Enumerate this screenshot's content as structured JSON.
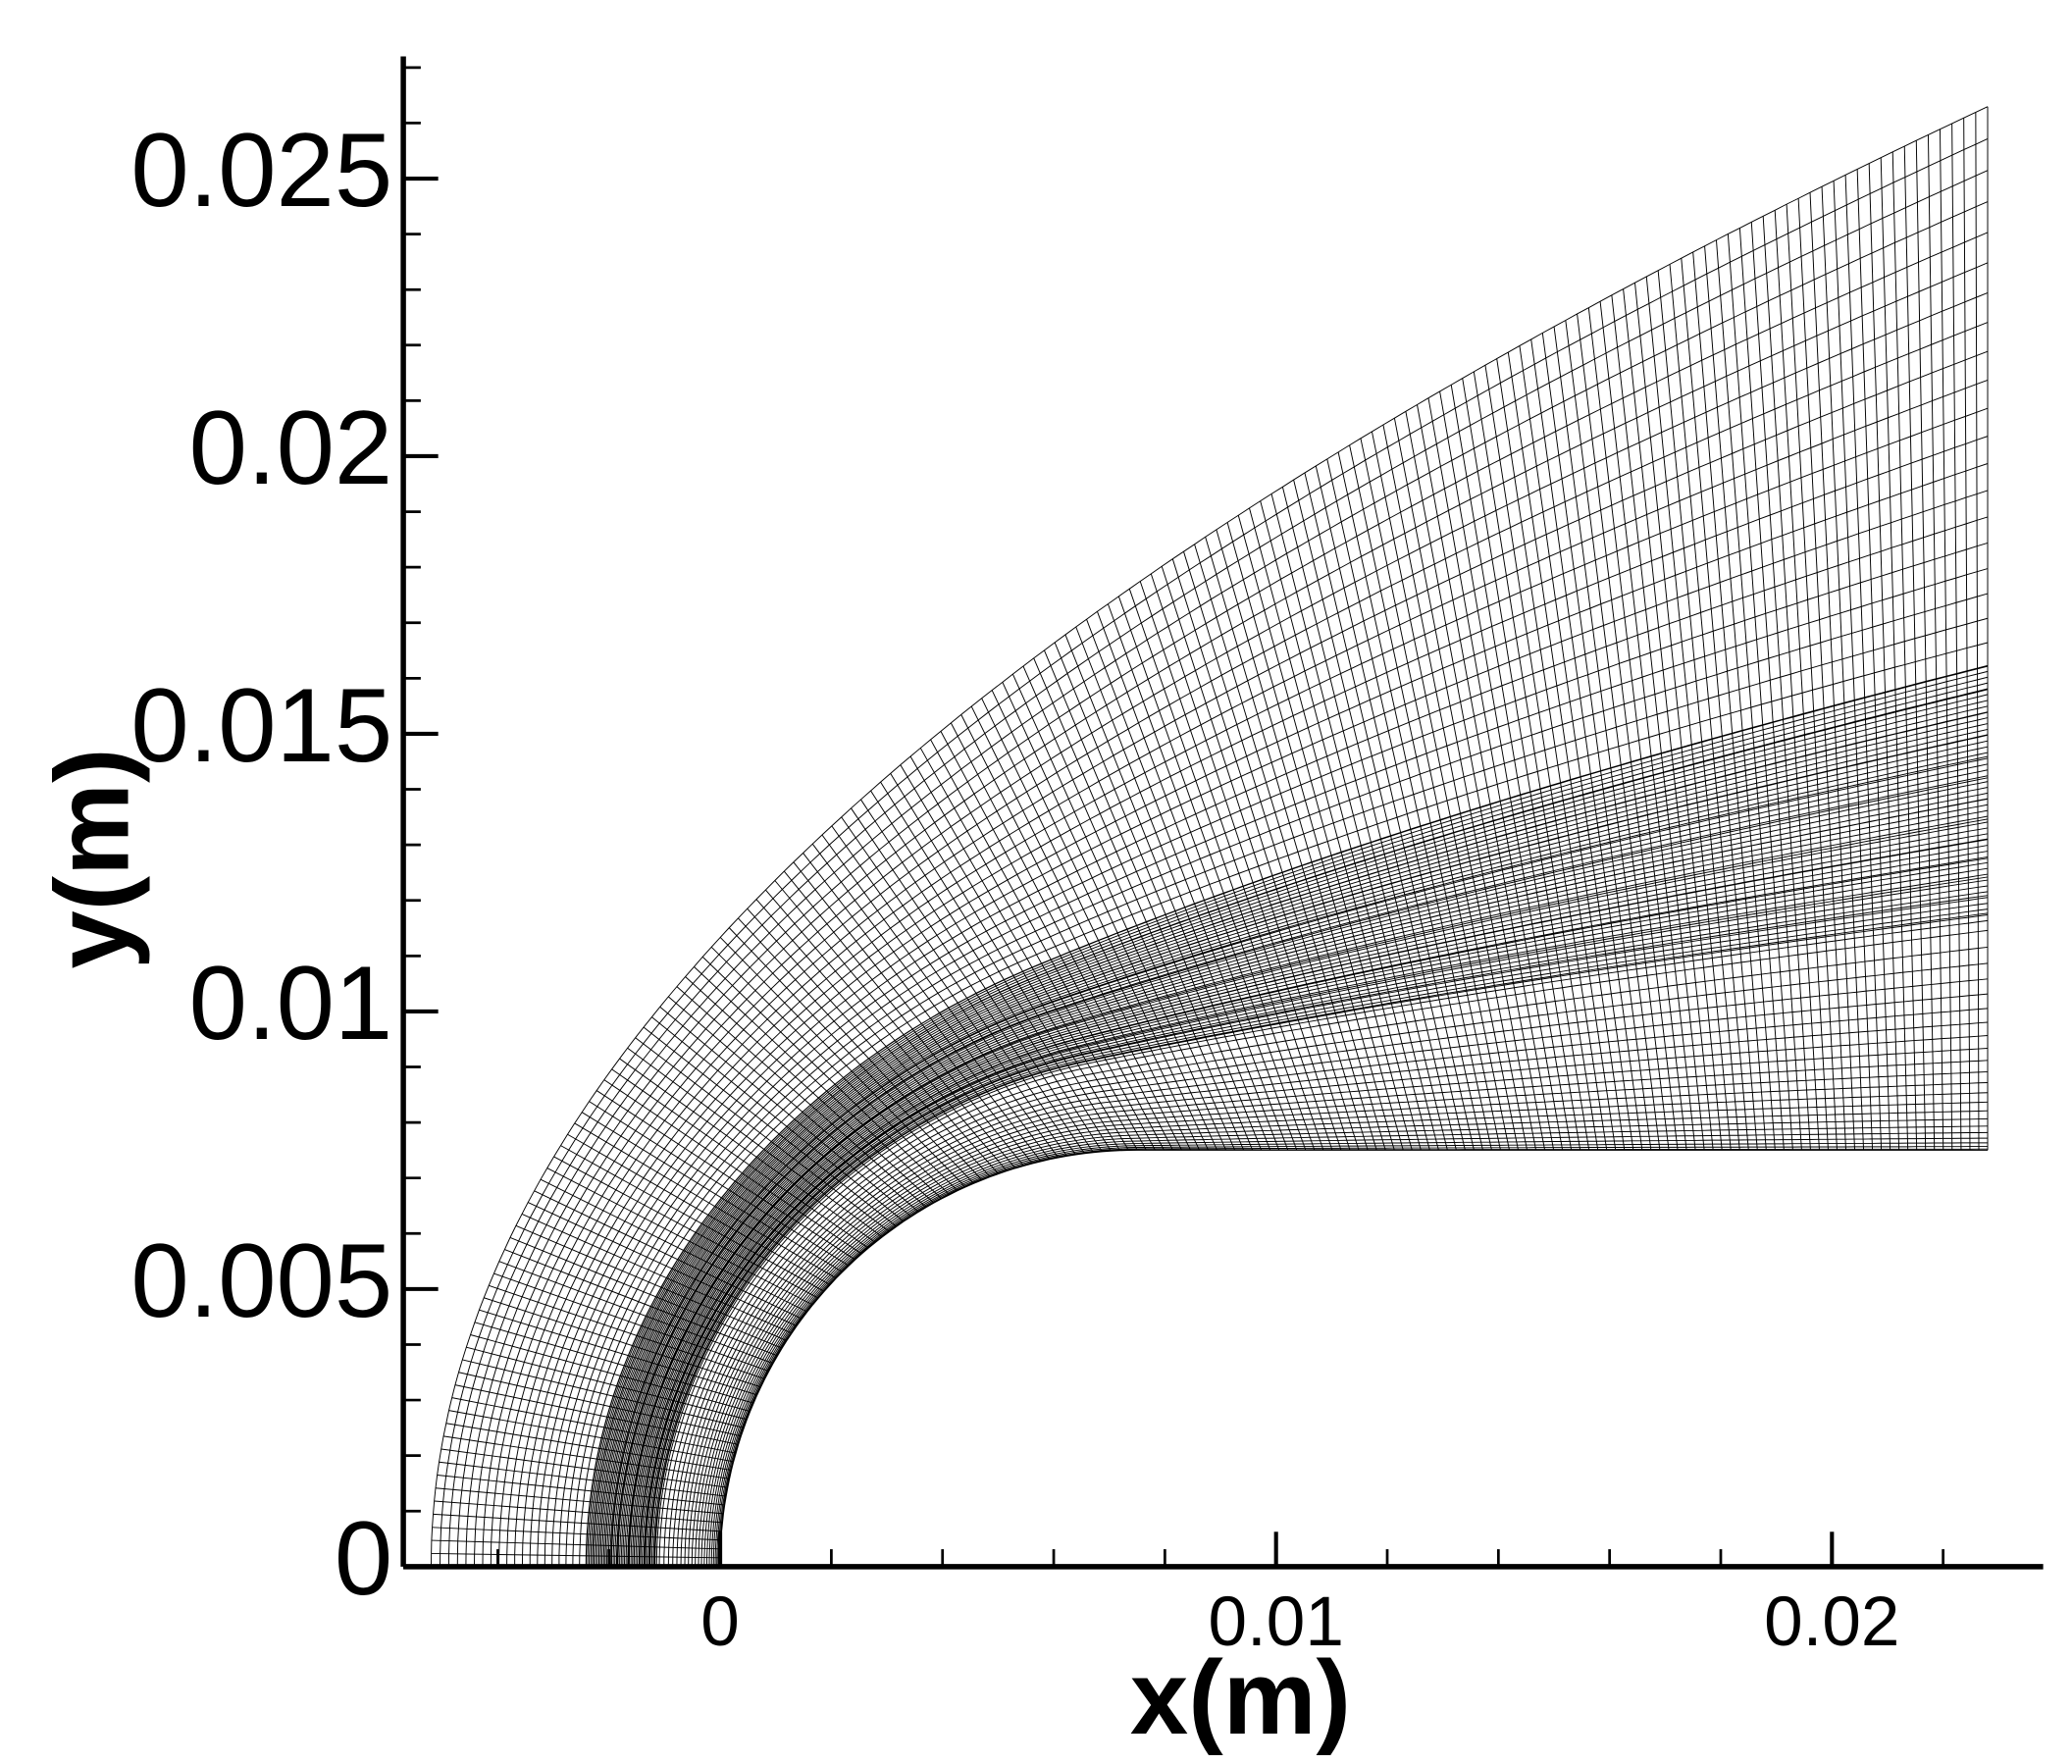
{
  "chart_data": {
    "type": "mesh",
    "xlabel": "x(m)",
    "ylabel": "y(m)",
    "xlim": [
      -0.0057,
      0.0238
    ],
    "ylim": [
      0,
      0.0272
    ],
    "xticks": [
      0,
      0.01,
      0.02
    ],
    "yticks": [
      0,
      0.005,
      0.01,
      0.015,
      0.02,
      0.025
    ],
    "x_minor_step": 0.002,
    "y_minor_step": 0.001,
    "color": "#000000"
  }
}
